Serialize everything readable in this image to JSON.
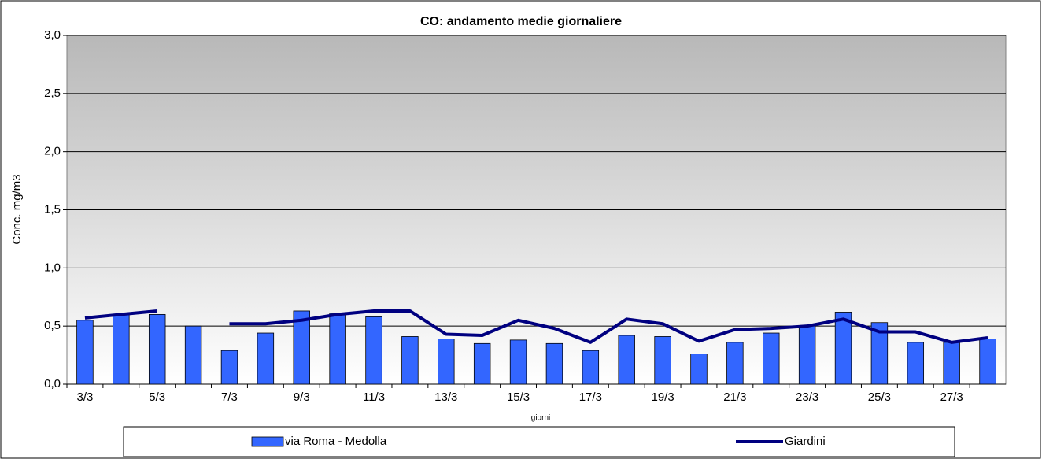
{
  "chart_data": {
    "type": "bar-line",
    "title": "CO: andamento medie giornaliere",
    "y_label": "Conc. mg/m3",
    "x_label": "giorni",
    "categories": [
      "3/3",
      null,
      "5/3",
      null,
      "7/3",
      null,
      "9/3",
      null,
      "11/3",
      null,
      "13/3",
      null,
      "15/3",
      null,
      "17/3",
      null,
      "19/3",
      null,
      "21/3",
      null,
      "23/3",
      null,
      "25/3",
      null,
      "27/3",
      null
    ],
    "series": [
      {
        "name": "via Roma - Medolla",
        "type": "bar",
        "color": "#3366ff",
        "values": [
          0.55,
          0.6,
          0.6,
          0.5,
          0.29,
          0.44,
          0.63,
          0.61,
          0.58,
          0.41,
          0.39,
          0.35,
          0.38,
          0.35,
          0.29,
          0.42,
          0.41,
          0.26,
          0.36,
          0.44,
          0.5,
          0.62,
          0.53,
          0.36,
          0.36,
          0.39
        ]
      },
      {
        "name": "Giardini",
        "type": "line",
        "color": "#000080",
        "values": [
          0.57,
          0.6,
          0.63,
          null,
          0.52,
          0.52,
          0.55,
          0.6,
          0.63,
          0.63,
          0.43,
          0.42,
          0.55,
          0.48,
          0.36,
          0.56,
          0.52,
          0.37,
          0.47,
          0.48,
          0.5,
          0.56,
          0.45,
          0.45,
          0.36,
          0.4
        ]
      }
    ],
    "ylim": [
      0,
      3
    ],
    "yticks": [
      {
        "value": 0,
        "label": "0,0"
      },
      {
        "value": 0.5,
        "label": "0,5"
      },
      {
        "value": 1,
        "label": "1,0"
      },
      {
        "value": 1.5,
        "label": "1,5"
      },
      {
        "value": 2,
        "label": "2,0"
      },
      {
        "value": 2.5,
        "label": "2,5"
      },
      {
        "value": 3,
        "label": "3,0"
      }
    ],
    "grid": true,
    "legend": "bottom"
  }
}
